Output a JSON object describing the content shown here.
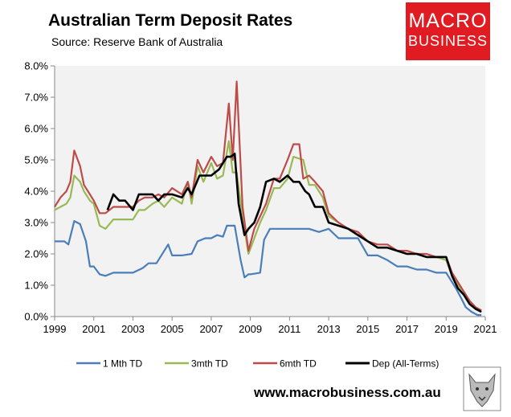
{
  "header": {
    "title": "Australian Term Deposit Rates",
    "subtitle": "Source: Reserve Bank of Australia"
  },
  "logo": {
    "line1": "MACRO",
    "line2": "BUSINESS"
  },
  "footer": {
    "website": "www.macrobusiness.com.au"
  },
  "colors": {
    "s1": "#4a7ebb",
    "s2": "#98b954",
    "s3": "#be4b48",
    "s4": "#000000",
    "plot_bg": "#f2f2f2",
    "logo_bg": "#e11b22"
  },
  "chart_data": {
    "type": "line",
    "title": "Australian Term Deposit Rates",
    "subtitle": "Source: Reserve Bank of Australia",
    "xlim": [
      1999,
      2021
    ],
    "ylim": [
      0,
      8
    ],
    "x_ticks": [
      1999,
      2001,
      2003,
      2005,
      2007,
      2009,
      2011,
      2013,
      2015,
      2017,
      2019,
      2021
    ],
    "x_tick_labels": [
      "1999",
      "2001",
      "2003",
      "2005",
      "2007",
      "2009",
      "2011",
      "2013",
      "2015",
      "2017",
      "2019",
      "2021"
    ],
    "y_ticks": [
      0,
      1,
      2,
      3,
      4,
      5,
      6,
      7,
      8
    ],
    "y_tick_labels": [
      "0.0%",
      "1.0%",
      "2.0%",
      "3.0%",
      "4.0%",
      "5.0%",
      "6.0%",
      "7.0%",
      "8.0%"
    ],
    "grid": false,
    "legend_position": "bottom",
    "series": [
      {
        "name": "1 Mth TD",
        "color": "#4a7ebb",
        "x": [
          1999.0,
          1999.5,
          1999.7,
          2000.0,
          2000.3,
          2000.6,
          2000.8,
          2001.0,
          2001.3,
          2001.6,
          2002.0,
          2002.5,
          2003.0,
          2003.5,
          2003.8,
          2004.2,
          2004.8,
          2005.0,
          2005.5,
          2006.0,
          2006.3,
          2006.7,
          2007.0,
          2007.3,
          2007.6,
          2007.8,
          2008.2,
          2008.5,
          2008.7,
          2008.9,
          2009.0,
          2009.5,
          2009.7,
          2010.0,
          2011.0,
          2012.0,
          2012.5,
          2013.0,
          2013.5,
          2014.0,
          2014.5,
          2015.0,
          2015.5,
          2016.0,
          2016.5,
          2017.0,
          2017.5,
          2018.0,
          2018.5,
          2019.0,
          2019.5,
          2019.8,
          2020.0,
          2020.3,
          2020.6,
          2020.8
        ],
        "y": [
          2.4,
          2.4,
          2.3,
          3.05,
          2.95,
          2.4,
          1.6,
          1.6,
          1.35,
          1.3,
          1.4,
          1.4,
          1.4,
          1.55,
          1.7,
          1.7,
          2.3,
          1.95,
          1.95,
          2.0,
          2.4,
          2.5,
          2.5,
          2.6,
          2.55,
          2.9,
          2.9,
          1.8,
          1.25,
          1.35,
          1.35,
          1.4,
          2.45,
          2.8,
          2.8,
          2.8,
          2.7,
          2.8,
          2.5,
          2.5,
          2.5,
          1.95,
          1.95,
          1.8,
          1.6,
          1.6,
          1.5,
          1.5,
          1.4,
          1.4,
          0.9,
          0.55,
          0.3,
          0.15,
          0.05,
          0.05
        ]
      },
      {
        "name": "3mth TD",
        "color": "#98b954",
        "x": [
          1999.0,
          1999.3,
          1999.6,
          1999.8,
          2000.0,
          2000.3,
          2000.5,
          2000.8,
          2001.0,
          2001.3,
          2001.6,
          2002.0,
          2002.5,
          2003.0,
          2003.3,
          2003.6,
          2004.0,
          2004.3,
          2004.6,
          2005.0,
          2005.5,
          2005.8,
          2006.0,
          2006.3,
          2006.6,
          2007.0,
          2007.3,
          2007.6,
          2007.9,
          2008.1,
          2008.3,
          2008.6,
          2008.9,
          2009.2,
          2009.5,
          2009.8,
          2010.2,
          2010.5,
          2010.9,
          2011.2,
          2011.7,
          2012.0,
          2012.3,
          2012.7,
          2013.0,
          2013.5,
          2014.0,
          2014.5,
          2015.0,
          2015.5,
          2016.0,
          2016.5,
          2017.0,
          2017.5,
          2018.0,
          2018.5,
          2019.0,
          2019.3,
          2019.6,
          2019.9,
          2020.2,
          2020.5,
          2020.8
        ],
        "y": [
          3.4,
          3.5,
          3.6,
          3.8,
          4.5,
          4.3,
          4.0,
          3.7,
          3.6,
          2.9,
          2.8,
          3.1,
          3.1,
          3.1,
          3.4,
          3.4,
          3.6,
          3.7,
          3.5,
          3.8,
          3.6,
          4.3,
          3.6,
          4.8,
          4.3,
          4.9,
          4.4,
          4.5,
          5.6,
          4.6,
          4.6,
          3.2,
          2.0,
          2.5,
          3.0,
          3.4,
          4.1,
          4.1,
          4.4,
          5.1,
          5.0,
          4.2,
          4.2,
          3.8,
          3.2,
          3.0,
          2.8,
          2.6,
          2.4,
          2.2,
          2.2,
          2.1,
          2.0,
          2.0,
          1.9,
          1.9,
          1.8,
          1.3,
          1.0,
          0.8,
          0.5,
          0.3,
          0.15
        ]
      },
      {
        "name": "6mth TD",
        "color": "#be4b48",
        "x": [
          1999.0,
          1999.3,
          1999.6,
          1999.8,
          2000.0,
          2000.3,
          2000.5,
          2000.8,
          2001.0,
          2001.3,
          2001.6,
          2002.0,
          2002.5,
          2003.0,
          2003.3,
          2003.6,
          2004.0,
          2004.3,
          2004.6,
          2005.0,
          2005.5,
          2005.8,
          2006.0,
          2006.3,
          2006.6,
          2007.0,
          2007.3,
          2007.6,
          2007.9,
          2008.1,
          2008.3,
          2008.6,
          2008.9,
          2009.2,
          2009.5,
          2009.8,
          2010.2,
          2010.5,
          2010.9,
          2011.2,
          2011.5,
          2011.7,
          2012.0,
          2012.3,
          2012.7,
          2013.0,
          2013.5,
          2014.0,
          2014.5,
          2015.0,
          2015.5,
          2016.0,
          2016.5,
          2017.0,
          2017.5,
          2018.0,
          2018.5,
          2019.0,
          2019.3,
          2019.6,
          2019.9,
          2020.2,
          2020.5,
          2020.8
        ],
        "y": [
          3.5,
          3.8,
          4.0,
          4.3,
          5.3,
          4.8,
          4.2,
          3.9,
          3.7,
          3.3,
          3.3,
          3.5,
          3.5,
          3.5,
          3.7,
          3.8,
          3.8,
          3.9,
          3.8,
          4.1,
          3.9,
          4.3,
          3.8,
          5.0,
          4.6,
          5.1,
          4.8,
          4.9,
          6.8,
          5.0,
          7.5,
          3.5,
          2.1,
          2.8,
          3.2,
          3.6,
          4.4,
          4.4,
          5.0,
          5.5,
          5.5,
          4.4,
          4.5,
          4.3,
          4.0,
          3.3,
          3.0,
          2.8,
          2.7,
          2.4,
          2.3,
          2.3,
          2.1,
          2.1,
          2.0,
          2.0,
          1.9,
          1.9,
          1.4,
          1.1,
          0.8,
          0.5,
          0.3,
          0.2
        ]
      },
      {
        "name": "Dep (All-Terms)",
        "color": "#000000",
        "x": [
          2001.7,
          2002.0,
          2002.3,
          2002.6,
          2003.0,
          2003.3,
          2003.6,
          2004.0,
          2004.3,
          2004.6,
          2005.0,
          2005.5,
          2005.8,
          2006.0,
          2006.4,
          2006.8,
          2007.0,
          2007.4,
          2007.8,
          2008.0,
          2008.2,
          2008.4,
          2008.7,
          2008.9,
          2009.2,
          2009.5,
          2009.8,
          2010.2,
          2010.5,
          2010.9,
          2011.2,
          2011.5,
          2011.8,
          2012.0,
          2012.3,
          2012.7,
          2013.0,
          2013.5,
          2014.0,
          2014.5,
          2015.0,
          2015.5,
          2016.0,
          2016.5,
          2017.0,
          2017.5,
          2018.0,
          2018.5,
          2019.0,
          2019.3,
          2019.6,
          2019.9,
          2020.2,
          2020.5,
          2020.8
        ],
        "y": [
          3.4,
          3.9,
          3.7,
          3.7,
          3.4,
          3.9,
          3.9,
          3.9,
          3.7,
          3.9,
          3.9,
          3.8,
          4.1,
          3.9,
          4.5,
          4.5,
          4.5,
          4.7,
          5.1,
          5.1,
          5.2,
          3.6,
          2.6,
          2.8,
          3.0,
          3.5,
          4.3,
          4.4,
          4.3,
          4.5,
          4.3,
          4.3,
          4.0,
          3.9,
          3.5,
          3.5,
          3.0,
          2.9,
          2.8,
          2.6,
          2.4,
          2.2,
          2.2,
          2.1,
          2.0,
          2.0,
          1.9,
          1.9,
          1.9,
          1.3,
          0.9,
          0.7,
          0.4,
          0.25,
          0.15
        ]
      }
    ]
  }
}
